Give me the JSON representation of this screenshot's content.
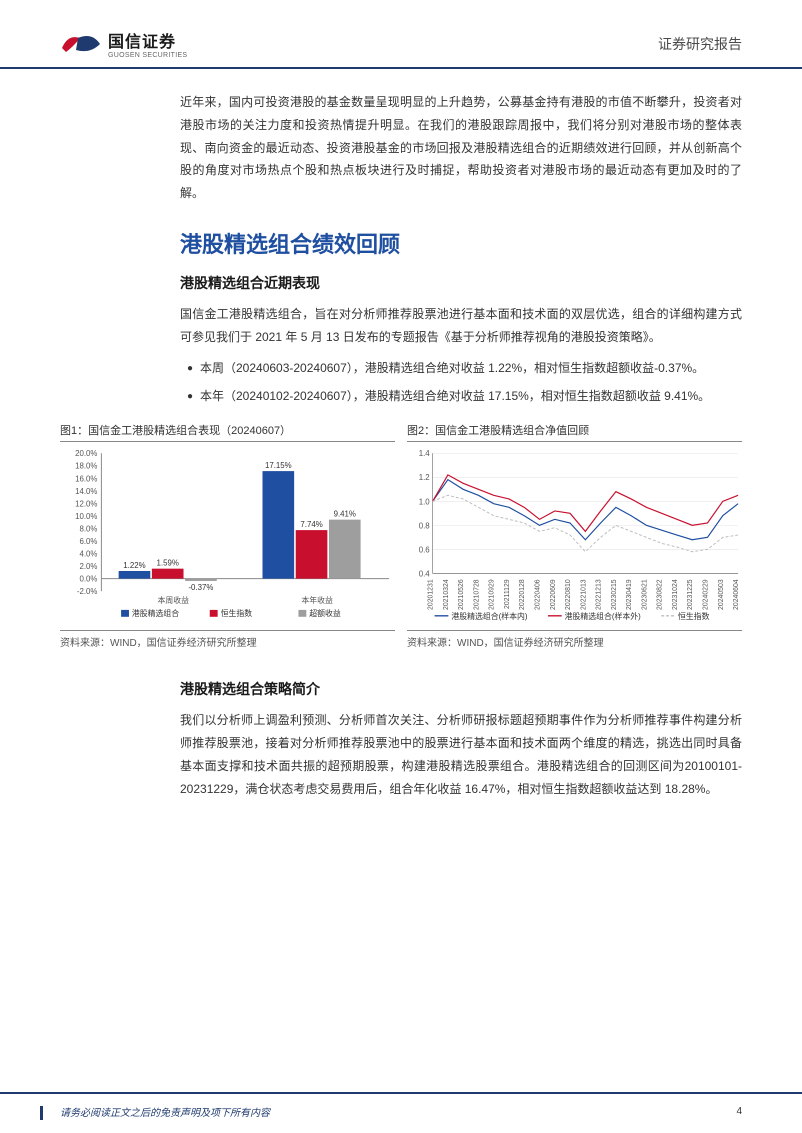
{
  "header": {
    "logo_cn": "国信证券",
    "logo_en": "GUOSEN SECURITIES",
    "report_type": "证券研究报告",
    "logo_colors": {
      "left": "#c8102e",
      "right": "#1f3a6e"
    }
  },
  "intro": "近年来，国内可投资港股的基金数量呈现明显的上升趋势，公募基金持有港股的市值不断攀升，投资者对港股市场的关注力度和投资热情提升明显。在我们的港股跟踪周报中，我们将分别对港股市场的整体表现、南向资金的最近动态、投资港股基金的市场回报及港股精选组合的近期绩效进行回顾，并从创新高个股的角度对市场热点个股和热点板块进行及时捕捉，帮助投资者对港股市场的最近动态有更加及时的了解。",
  "section1": {
    "title": "港股精选组合绩效回顾",
    "sub1_title": "港股精选组合近期表现",
    "sub1_para": "国信金工港股精选组合，旨在对分析师推荐股票池进行基本面和技术面的双层优选，组合的详细构建方式可参见我们于 2021 年 5 月 13 日发布的专题报告《基于分析师推荐视角的港股投资策略》。",
    "bullets": [
      "本周（20240603-20240607），港股精选组合绝对收益 1.22%，相对恒生指数超额收益-0.37%。",
      "本年（20240102-20240607），港股精选组合绝对收益 17.15%，相对恒生指数超额收益 9.41%。"
    ],
    "sub2_title": "港股精选组合策略简介",
    "sub2_para": "我们以分析师上调盈利预测、分析师首次关注、分析师研报标题超预期事件作为分析师推荐事件构建分析师推荐股票池，接着对分析师推荐股票池中的股票进行基本面和技术面两个维度的精选，挑选出同时具备基本面支撑和技术面共振的超预期股票，构建港股精选股票组合。港股精选组合的回测区间为20100101-20231229，满仓状态考虑交易费用后，组合年化收益 16.47%，相对恒生指数超额收益达到 18.28%。"
  },
  "chart1": {
    "title": "图1：国信金工港股精选组合表现（20240607）",
    "type": "bar-grouped",
    "groups": [
      "本周收益",
      "本年收益"
    ],
    "series": [
      {
        "name": "港股精选组合",
        "color": "#1f4fa0",
        "values": [
          1.22,
          17.15
        ]
      },
      {
        "name": "恒生指数",
        "color": "#c8102e",
        "values": [
          1.59,
          7.74
        ]
      },
      {
        "name": "超额收益",
        "color": "#9e9e9e",
        "values": [
          -0.37,
          9.41
        ]
      }
    ],
    "ylim": [
      -2.0,
      20.0
    ],
    "ytick_step": 2.0,
    "ytick_format": "percent",
    "bar_width": 0.22,
    "background": "#ffffff",
    "axis_color": "#888888",
    "label_fontsize": 8,
    "source": "资料来源：WIND，国信证券经济研究所整理"
  },
  "chart2": {
    "title": "图2：国信金工港股精选组合净值回顾",
    "type": "line",
    "x_labels": [
      "20201231",
      "20210324",
      "20210526",
      "20210728",
      "20210929",
      "20211129",
      "20220128",
      "20220406",
      "20220609",
      "20220810",
      "20221013",
      "20221213",
      "20230215",
      "20230419",
      "20230621",
      "20230822",
      "20231024",
      "20231225",
      "20240229",
      "20240503",
      "20240604"
    ],
    "series": [
      {
        "name": "港股精选组合(样本内)",
        "color": "#1f4fa0",
        "width": 1.2,
        "values": [
          1.0,
          1.18,
          1.1,
          1.05,
          0.98,
          0.95,
          0.88,
          0.8,
          0.85,
          0.82,
          0.68,
          0.82,
          0.95,
          0.88,
          0.8,
          0.76,
          0.72,
          0.68,
          0.7,
          0.88,
          0.98
        ]
      },
      {
        "name": "港股精选组合(样本外)",
        "color": "#c8102e",
        "width": 1.2,
        "values": [
          1.0,
          1.22,
          1.15,
          1.1,
          1.05,
          1.02,
          0.95,
          0.85,
          0.92,
          0.9,
          0.75,
          0.92,
          1.08,
          1.02,
          0.95,
          0.9,
          0.85,
          0.8,
          0.82,
          1.0,
          1.05
        ]
      },
      {
        "name": "恒生指数",
        "color": "#bdbdbd",
        "width": 1.0,
        "dash": "3,2",
        "values": [
          1.0,
          1.05,
          1.02,
          0.95,
          0.88,
          0.85,
          0.82,
          0.75,
          0.78,
          0.72,
          0.58,
          0.7,
          0.8,
          0.75,
          0.7,
          0.65,
          0.62,
          0.58,
          0.6,
          0.7,
          0.72
        ]
      }
    ],
    "ylim": [
      0.4,
      1.4
    ],
    "ytick_step": 0.2,
    "background": "#ffffff",
    "grid_color": "#e5e5e5",
    "axis_color": "#888888",
    "label_fontsize": 7,
    "source": "资料来源：WIND，国信证券经济研究所整理"
  },
  "footer": {
    "disclaimer": "请务必阅读正文之后的免责声明及项下所有内容",
    "page": "4"
  },
  "colors": {
    "heading_blue": "#1f4fa0",
    "rule_blue": "#1f3a6e",
    "text": "#333333"
  }
}
